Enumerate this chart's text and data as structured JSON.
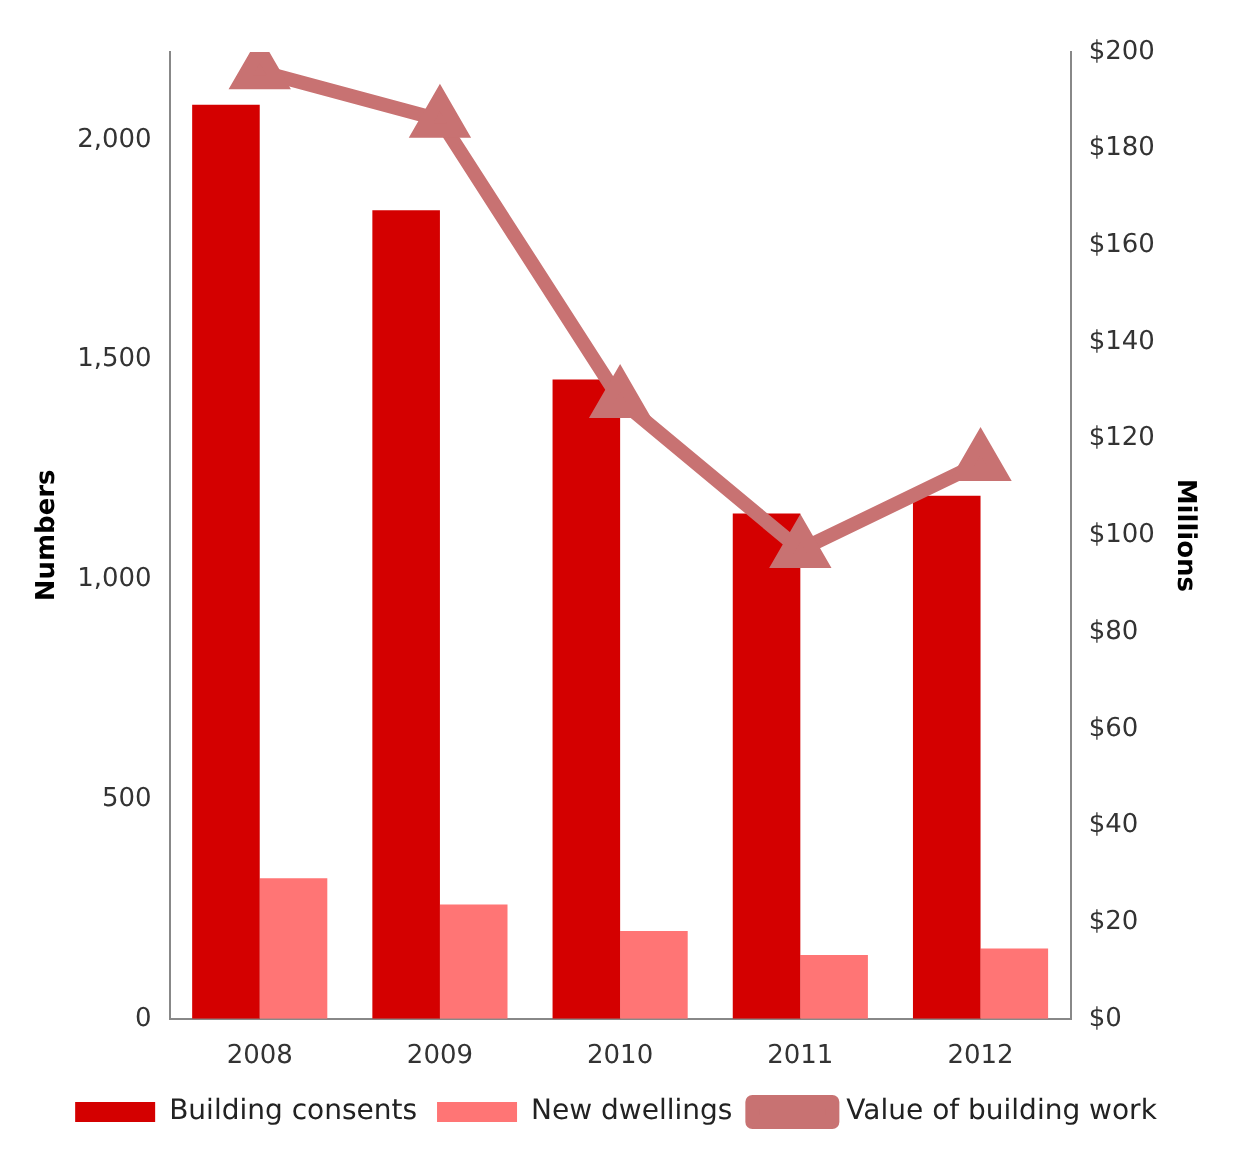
{
  "chart_data": {
    "type": "bar",
    "ylabel": "Numbers",
    "y2label": "Millions",
    "categories": [
      "2008",
      "2009",
      "2010",
      "2011",
      "2012"
    ],
    "series": [
      {
        "name": "Building consents",
        "color": "#d40000",
        "values": [
          2080,
          1840,
          1455,
          1150,
          1190
        ]
      },
      {
        "name": "New dwellings",
        "color": "#ff7575",
        "values": [
          320,
          260,
          200,
          145,
          160
        ]
      },
      {
        "name": "Value of building work",
        "type": "line",
        "axis": "y2",
        "color": "#c87272",
        "marker": "triangle",
        "values": [
          196,
          186,
          128,
          97,
          115
        ]
      }
    ],
    "ylim": [
      0,
      2200
    ],
    "yticks": [
      0,
      500,
      {
        "value": 1000,
        "label": "1,000"
      },
      {
        "value": 1500,
        "label": "1,500"
      },
      {
        "value": 2000,
        "label": "2,000"
      }
    ],
    "y2lim": [
      0,
      200
    ],
    "y2ticks": [
      {
        "value": 0,
        "label": "$0"
      },
      {
        "value": 20,
        "label": "$20"
      },
      {
        "value": 40,
        "label": "$40"
      },
      {
        "value": 60,
        "label": "$60"
      },
      {
        "value": 80,
        "label": "$80"
      },
      {
        "value": 100,
        "label": "$100"
      },
      {
        "value": 120,
        "label": "$120"
      },
      {
        "value": 140,
        "label": "$140"
      },
      {
        "value": 160,
        "label": "$160"
      },
      {
        "value": 180,
        "label": "$180"
      },
      {
        "value": 200,
        "label": "$200"
      }
    ],
    "grid": false,
    "legend": "bottom"
  }
}
